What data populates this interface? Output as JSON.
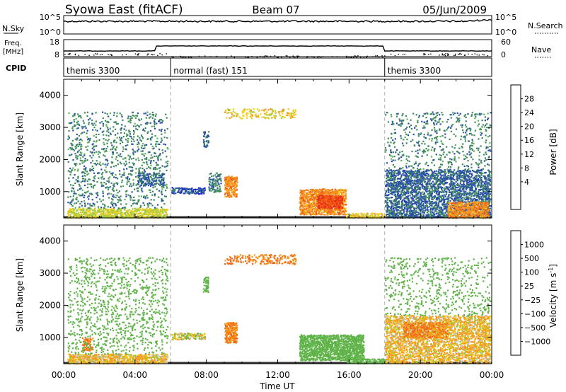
{
  "header": {
    "station": "Syowa East (fitACF)",
    "beam": "Beam 07",
    "date": "05/Jun/2009"
  },
  "noise_panel": {
    "left_label": "N.Sky",
    "right_label": "N.Search",
    "left_ticks": [
      "10^5",
      "10^0"
    ],
    "right_ticks": [
      "10^5",
      "10^0"
    ]
  },
  "freq_panel": {
    "left_label_1": "Freq.",
    "left_label_2": "[MHz]",
    "right_label": "Nave",
    "left_ticks": [
      "18",
      "8"
    ],
    "right_ticks": [
      "60",
      "0"
    ]
  },
  "cpid_panel": {
    "label": "CPID",
    "segments": [
      {
        "name": "themis 3300",
        "start_h": 0,
        "end_h": 6
      },
      {
        "name": "normal (fast) 151",
        "start_h": 6,
        "end_h": 18
      },
      {
        "name": "themis 3300",
        "start_h": 18,
        "end_h": 24
      }
    ]
  },
  "power_panel": {
    "ylabel": "Slant Range [km]",
    "yticks": [
      "1000",
      "2000",
      "3000",
      "4000"
    ],
    "colorbar_label": "Power [dB]",
    "colorbar_ticks": [
      "28",
      "24",
      "20",
      "16",
      "12",
      "8",
      "4"
    ]
  },
  "velocity_panel": {
    "ylabel": "Slant Range [km]",
    "yticks": [
      "1000",
      "2000",
      "3000",
      "4000"
    ],
    "colorbar_label": "Velocity [m s",
    "colorbar_label_sup": "-1",
    "colorbar_label_end": "]",
    "colorbar_ticks": [
      "1000",
      "500",
      "100",
      "25",
      "−25",
      "−100",
      "−500",
      "−1000"
    ]
  },
  "xaxis": {
    "label": "Time UT",
    "ticks": [
      "00:00",
      "04:00",
      "08:00",
      "12:00",
      "16:00",
      "20:00",
      "00:00"
    ]
  },
  "colors": {
    "power_scale": [
      "#e8221c",
      "#f05a14",
      "#f5921c",
      "#f2cc22",
      "#a8cc3a",
      "#5fb45a",
      "#3e8a5e",
      "#2a4fa8",
      "#1a1ae0"
    ],
    "velocity_scale": [
      "#2d4fa0",
      "#3a8a5a",
      "#5fb348",
      "#9acd32",
      "#bdbdbd",
      "#f5c518",
      "#f59a1a",
      "#f06a14",
      "#e81e14"
    ]
  },
  "chart_data": [
    {
      "type": "heatmap",
      "title": "Power",
      "xlabel": "Time UT",
      "ylabel": "Slant Range [km]",
      "xlim": [
        0,
        24
      ],
      "ylim": [
        180,
        4500
      ],
      "zlabel": "Power [dB]",
      "zlim": [
        0,
        30
      ],
      "grid": false,
      "regions": [
        {
          "t0": 0.2,
          "t1": 5.8,
          "r0": 200,
          "r1": 500,
          "value": 16,
          "density": 0.55
        },
        {
          "t0": 0.2,
          "t1": 5.8,
          "r0": 500,
          "r1": 3500,
          "value": 8,
          "density": 0.1
        },
        {
          "t0": 4.1,
          "t1": 5.6,
          "r0": 1200,
          "r1": 1600,
          "value": 6,
          "density": 0.3
        },
        {
          "t0": 6.0,
          "t1": 7.9,
          "r0": 950,
          "r1": 1150,
          "value": 5,
          "density": 0.55
        },
        {
          "t0": 8.1,
          "t1": 8.8,
          "r0": 1000,
          "r1": 1600,
          "value": 8,
          "density": 0.35
        },
        {
          "t0": 9.0,
          "t1": 9.7,
          "r0": 850,
          "r1": 1500,
          "value": 22,
          "density": 0.7
        },
        {
          "t0": 7.8,
          "t1": 8.1,
          "r0": 2400,
          "r1": 2900,
          "value": 6,
          "density": 0.4
        },
        {
          "t0": 13.2,
          "t1": 15.8,
          "r0": 300,
          "r1": 1100,
          "value": 22,
          "density": 0.65
        },
        {
          "t0": 14.2,
          "t1": 15.6,
          "r0": 500,
          "r1": 900,
          "value": 26,
          "density": 0.75
        },
        {
          "t0": 15.8,
          "t1": 18.0,
          "r0": 200,
          "r1": 350,
          "value": 18,
          "density": 0.6
        },
        {
          "t0": 18.0,
          "t1": 23.9,
          "r0": 200,
          "r1": 1700,
          "value": 6,
          "density": 0.45
        },
        {
          "t0": 21.5,
          "t1": 23.8,
          "r0": 200,
          "r1": 700,
          "value": 22,
          "density": 0.55
        },
        {
          "t0": 18.0,
          "t1": 23.9,
          "r0": 1700,
          "r1": 3500,
          "value": 8,
          "density": 0.08
        },
        {
          "t0": 9.0,
          "t1": 13.0,
          "r0": 3300,
          "r1": 3600,
          "value": 18,
          "density": 0.2
        }
      ]
    },
    {
      "type": "heatmap",
      "title": "Velocity",
      "xlabel": "Time UT",
      "ylabel": "Slant Range [km]",
      "xlim": [
        0,
        24
      ],
      "ylim": [
        180,
        4500
      ],
      "zlabel": "Velocity [m s-1]",
      "zlim": [
        -1000,
        1000
      ],
      "grid": false,
      "regions": [
        {
          "t0": 0.2,
          "t1": 5.8,
          "r0": 200,
          "r1": 500,
          "value": -100,
          "density": 0.55
        },
        {
          "t0": 1.0,
          "t1": 1.6,
          "r0": 600,
          "r1": 1000,
          "value": -500,
          "density": 0.4
        },
        {
          "t0": 0.2,
          "t1": 5.8,
          "r0": 500,
          "r1": 3500,
          "value": 300,
          "density": 0.1
        },
        {
          "t0": 6.0,
          "t1": 7.9,
          "r0": 950,
          "r1": 1150,
          "value": 0,
          "density": 0.55
        },
        {
          "t0": 9.0,
          "t1": 9.7,
          "r0": 850,
          "r1": 1500,
          "value": -500,
          "density": 0.7
        },
        {
          "t0": 7.8,
          "t1": 8.1,
          "r0": 2400,
          "r1": 2900,
          "value": 300,
          "density": 0.4
        },
        {
          "t0": 13.2,
          "t1": 16.8,
          "r0": 300,
          "r1": 1100,
          "value": 300,
          "density": 0.65
        },
        {
          "t0": 15.8,
          "t1": 18.0,
          "r0": 200,
          "r1": 350,
          "value": 300,
          "density": 0.6
        },
        {
          "t0": 18.0,
          "t1": 23.9,
          "r0": 200,
          "r1": 1700,
          "value": -100,
          "density": 0.45
        },
        {
          "t0": 19.0,
          "t1": 21.5,
          "r0": 1000,
          "r1": 1500,
          "value": -500,
          "density": 0.45
        },
        {
          "t0": 18.0,
          "t1": 23.9,
          "r0": 1700,
          "r1": 3500,
          "value": 300,
          "density": 0.08
        },
        {
          "t0": 9.0,
          "t1": 13.0,
          "r0": 3300,
          "r1": 3600,
          "value": -500,
          "density": 0.2
        }
      ]
    }
  ]
}
